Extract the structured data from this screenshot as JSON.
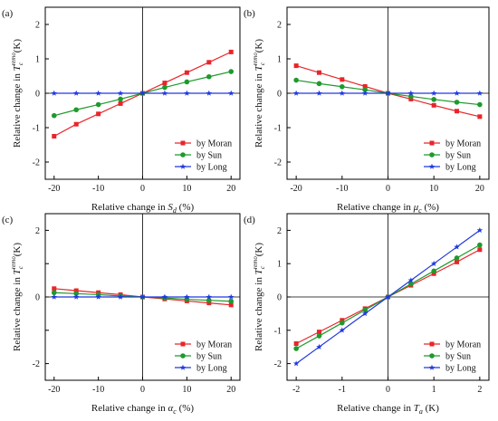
{
  "colors": {
    "moran": "#e8252a",
    "sun": "#1e9a2c",
    "long": "#2038e0"
  },
  "chart_data": [
    {
      "type": "line",
      "panel_label": "(a)",
      "xlabel": "Relative change in S_d (%)",
      "xlabel_main": "Relative change in ",
      "xlabel_sym": "S",
      "xlabel_sub": "d",
      "xlabel_unit": " (%)",
      "ylabel": "Relative change in T_c^remo (K)",
      "ylabel_main": "Relative change in ",
      "ylabel_sym": "T",
      "ylabel_sub": "c",
      "ylabel_sup": "remo",
      "ylabel_unit": " (K)",
      "xlim": [
        -22,
        22
      ],
      "ylim": [
        -2.5,
        2.5
      ],
      "xticks": [
        "-20",
        "-10",
        "0",
        "10",
        "20"
      ],
      "xtick_values": [
        -20,
        -10,
        0,
        10,
        20
      ],
      "yticks": [
        "-2",
        "-1",
        "0",
        "1",
        "2"
      ],
      "ytick_values": [
        -2,
        -1,
        0,
        1,
        2
      ],
      "x": [
        -20,
        -15,
        -10,
        -5,
        0,
        5,
        10,
        15,
        20
      ],
      "legend_position": "bottom-right",
      "series": [
        {
          "name": "by Moran",
          "key": "moran",
          "marker": "square",
          "values": [
            -1.25,
            -0.9,
            -0.6,
            -0.3,
            0,
            0.3,
            0.6,
            0.9,
            1.2
          ]
        },
        {
          "name": "by Sun",
          "key": "sun",
          "marker": "circle",
          "values": [
            -0.65,
            -0.48,
            -0.33,
            -0.17,
            0,
            0.17,
            0.33,
            0.48,
            0.63
          ]
        },
        {
          "name": "by Long",
          "key": "long",
          "marker": "star",
          "values": [
            0,
            0,
            0,
            0,
            0,
            0,
            0,
            0,
            0
          ]
        }
      ]
    },
    {
      "type": "line",
      "panel_label": "(b)",
      "xlabel": "Relative change in μ_c (%)",
      "xlabel_main": "Relative change in ",
      "xlabel_sym": "μ",
      "xlabel_sub": "c",
      "xlabel_unit": " (%)",
      "ylabel": "Relative change in T_c^remo (K)",
      "ylabel_main": "Relative change in ",
      "ylabel_sym": "T",
      "ylabel_sub": "c",
      "ylabel_sup": "remo",
      "ylabel_unit": " (K)",
      "xlim": [
        -22,
        22
      ],
      "ylim": [
        -2.5,
        2.5
      ],
      "xticks": [
        "-20",
        "-10",
        "0",
        "10",
        "20"
      ],
      "xtick_values": [
        -20,
        -10,
        0,
        10,
        20
      ],
      "yticks": [
        "-2",
        "-1",
        "0",
        "1",
        "2"
      ],
      "ytick_values": [
        -2,
        -1,
        0,
        1,
        2
      ],
      "x": [
        -20,
        -15,
        -10,
        -5,
        0,
        5,
        10,
        15,
        20
      ],
      "legend_position": "bottom-right",
      "series": [
        {
          "name": "by Moran",
          "key": "moran",
          "marker": "square",
          "values": [
            0.8,
            0.6,
            0.4,
            0.2,
            0,
            -0.17,
            -0.35,
            -0.52,
            -0.68
          ]
        },
        {
          "name": "by Sun",
          "key": "sun",
          "marker": "circle",
          "values": [
            0.38,
            0.28,
            0.19,
            0.1,
            0,
            -0.09,
            -0.18,
            -0.26,
            -0.33
          ]
        },
        {
          "name": "by Long",
          "key": "long",
          "marker": "star",
          "values": [
            0,
            0,
            0,
            0,
            0,
            0,
            0,
            0,
            0
          ]
        }
      ]
    },
    {
      "type": "line",
      "panel_label": "(c)",
      "xlabel": "Relative change in α_c (%)",
      "xlabel_main": "Relative change in ",
      "xlabel_sym": "α",
      "xlabel_sub": "c",
      "xlabel_unit": " (%)",
      "ylabel": "Relative change in T_c^remo (K)",
      "ylabel_main": "Relative change in ",
      "ylabel_sym": "T",
      "ylabel_sub": "c",
      "ylabel_sup": "remo",
      "ylabel_unit": " (K)",
      "xlim": [
        -22,
        22
      ],
      "ylim": [
        -2.5,
        2.5
      ],
      "xticks": [
        "-20",
        "-10",
        "0",
        "10",
        "20"
      ],
      "xtick_values": [
        -20,
        -10,
        0,
        10,
        20
      ],
      "yticks": [
        "-2",
        "",
        "0",
        "",
        "2"
      ],
      "ytick_values": [
        -2,
        -1,
        0,
        1,
        2
      ],
      "x": [
        -20,
        -15,
        -10,
        -5,
        0,
        5,
        10,
        15,
        20
      ],
      "legend_position": "bottom-right",
      "series": [
        {
          "name": "by Moran",
          "key": "moran",
          "marker": "square",
          "values": [
            0.25,
            0.19,
            0.13,
            0.07,
            0,
            -0.06,
            -0.12,
            -0.18,
            -0.24
          ]
        },
        {
          "name": "by Sun",
          "key": "sun",
          "marker": "circle",
          "values": [
            0.13,
            0.1,
            0.07,
            0.03,
            0,
            -0.03,
            -0.07,
            -0.1,
            -0.13
          ]
        },
        {
          "name": "by Long",
          "key": "long",
          "marker": "star",
          "values": [
            0,
            0,
            0,
            0,
            0,
            0,
            0,
            0,
            0
          ]
        }
      ]
    },
    {
      "type": "line",
      "panel_label": "(d)",
      "xlabel": "Relative change in T_a (K)",
      "xlabel_main": "Relative change in ",
      "xlabel_sym": "T",
      "xlabel_sub": "a",
      "xlabel_unit": " (K)",
      "ylabel": "Relative change in T_c^remo (K)",
      "ylabel_main": "Relative change in ",
      "ylabel_sym": "T",
      "ylabel_sub": "c",
      "ylabel_sup": "remo",
      "ylabel_unit": " (K)",
      "xlim": [
        -2.2,
        2.2
      ],
      "ylim": [
        -2.5,
        2.5
      ],
      "xticks": [
        "-2",
        "-1",
        "0",
        "1",
        "2"
      ],
      "xtick_values": [
        -2,
        -1,
        0,
        1,
        2
      ],
      "yticks": [
        "-2",
        "-1",
        "0",
        "1",
        "2"
      ],
      "ytick_values": [
        -2,
        -1,
        0,
        1,
        2
      ],
      "x": [
        -2,
        -1.5,
        -1,
        -0.5,
        0,
        0.5,
        1,
        1.5,
        2
      ],
      "legend_position": "bottom-right",
      "series": [
        {
          "name": "by Moran",
          "key": "moran",
          "marker": "square",
          "values": [
            -1.4,
            -1.05,
            -0.7,
            -0.35,
            0,
            0.35,
            0.7,
            1.05,
            1.42
          ]
        },
        {
          "name": "by Sun",
          "key": "sun",
          "marker": "circle",
          "values": [
            -1.55,
            -1.17,
            -0.78,
            -0.39,
            0,
            0.39,
            0.78,
            1.17,
            1.56
          ]
        },
        {
          "name": "by Long",
          "key": "long",
          "marker": "star",
          "values": [
            -2,
            -1.5,
            -1,
            -0.5,
            0,
            0.5,
            1,
            1.5,
            2
          ]
        }
      ]
    }
  ]
}
